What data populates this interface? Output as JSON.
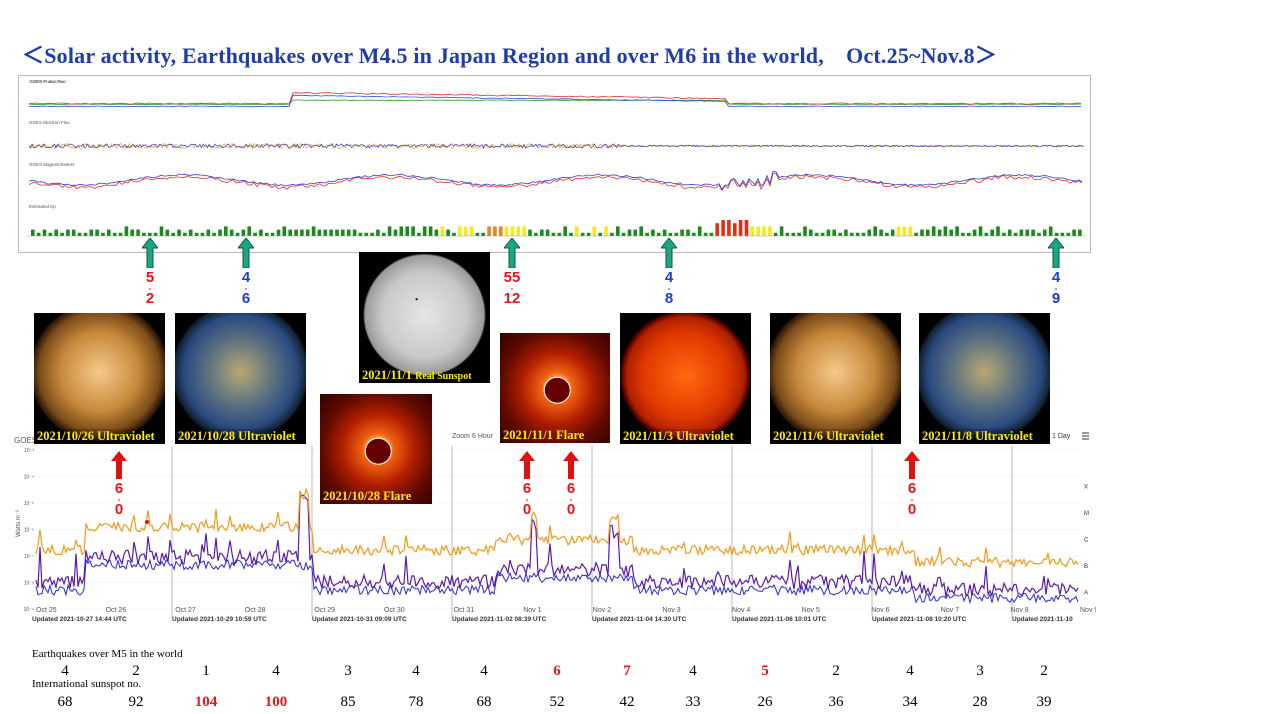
{
  "title": "＜Solar activity, Earthquakes over M4.5 in Japan Region and over M6 in the world,　Oct.25~Nov.8＞",
  "colors": {
    "title": "#1f3caa",
    "red": "#e8161c",
    "blue": "#1a3fd6",
    "arrow_green": "#19a784",
    "arrow_red": "#e01010",
    "caption": "#ffea00"
  },
  "goes_panel": {
    "proton_label": "GOES Proton Flux",
    "electron_label": "GOES Electron Flux",
    "magnetometer_label": "GOES Magnetometers",
    "kp_label": "Estimated Kp"
  },
  "quake_markers_top": [
    {
      "top": "5",
      "bottom": "2",
      "top_color": "red",
      "bottom_color": "red"
    },
    {
      "top": "4",
      "bottom": "6",
      "top_color": "blue",
      "bottom_color": "blue"
    },
    {
      "top": "55",
      "bottom": "12",
      "top_color": "red",
      "bottom_color": "red"
    },
    {
      "top": "4",
      "bottom": "8",
      "top_color": "blue",
      "bottom_color": "blue"
    },
    {
      "top": "4",
      "bottom": "9",
      "top_color": "blue",
      "bottom_color": "blue"
    }
  ],
  "sun_images": [
    {
      "caption": "2021/10/26 Ultraviolet"
    },
    {
      "caption": "2021/10/28 Ultraviolet"
    },
    {
      "caption_date": "2021/11/1",
      "caption_small": "Real Sunspot"
    },
    {
      "caption": "2021/10/28 Flare"
    },
    {
      "caption": "2021/11/1  Flare"
    },
    {
      "caption": "2021/11/3 Ultraviolet"
    },
    {
      "caption": "2021/11/6 Ultraviolet"
    },
    {
      "caption": "2021/11/8 Ultraviolet"
    }
  ],
  "quake_markers_xray": [
    {
      "top": "6",
      "bottom": "0"
    },
    {
      "top": "6",
      "bottom": "0"
    },
    {
      "top": "6",
      "bottom": "0"
    },
    {
      "top": "6",
      "bottom": "0"
    }
  ],
  "xray_panel": {
    "goes_label": "GOES",
    "y_axis_label": "Watts m⁻²",
    "zoom_label": "Zoom",
    "zoom_6h": "6 Hour",
    "zoom_1d": "1 Day",
    "class_labels": [
      "X",
      "M",
      "C",
      "B",
      "A"
    ],
    "y_ticks": [
      "10⁻³",
      "10⁻⁴",
      "10⁻⁵",
      "10⁻⁶",
      "10⁻⁷",
      "10⁻⁸",
      "10⁻⁹"
    ],
    "x_ticks": [
      "Oct 25",
      "Oct 26",
      "Oct 27",
      "Oct 28",
      "Oct 29",
      "Oct 30",
      "Oct 31",
      "Nov 1",
      "Nov 2",
      "Nov 3",
      "Nov 4",
      "Nov 5",
      "Nov 6",
      "Nov 7",
      "Nov 8",
      "Nov 9"
    ],
    "updated": [
      "Updated 2021-10-27 14:44 UTC",
      "Updated 2021-10-29 10:59 UTC",
      "Updated 2021-10-31 09:09 UTC",
      "Updated 2021-11-02 08:39 UTC",
      "Updated 2021-11-04 14:30 UTC",
      "Updated 2021-11-06 10:01 UTC",
      "Updated 2021-11-08 10:20 UTC",
      "Updated 2021-11-10"
    ]
  },
  "earthquakes_label": "Earthquakes over M5 in the world",
  "earthquakes": [
    {
      "v": "4",
      "red": false
    },
    {
      "v": "2",
      "red": false
    },
    {
      "v": "1",
      "red": false
    },
    {
      "v": "4",
      "red": false
    },
    {
      "v": "3",
      "red": false
    },
    {
      "v": "4",
      "red": false
    },
    {
      "v": "4",
      "red": false
    },
    {
      "v": "6",
      "red": true
    },
    {
      "v": "7",
      "red": true
    },
    {
      "v": "4",
      "red": false
    },
    {
      "v": "5",
      "red": true
    },
    {
      "v": "2",
      "red": false
    },
    {
      "v": "4",
      "red": false
    },
    {
      "v": "3",
      "red": false
    },
    {
      "v": "2",
      "red": false
    }
  ],
  "sunspot_label": "International sunspot no.",
  "sunspots": [
    {
      "v": "68",
      "red": false
    },
    {
      "v": "92",
      "red": false
    },
    {
      "v": "104",
      "red": true
    },
    {
      "v": "100",
      "red": true
    },
    {
      "v": "85",
      "red": false
    },
    {
      "v": "78",
      "red": false
    },
    {
      "v": "68",
      "red": false
    },
    {
      "v": "52",
      "red": false
    },
    {
      "v": "42",
      "red": false
    },
    {
      "v": "33",
      "red": false
    },
    {
      "v": "26",
      "red": false
    },
    {
      "v": "36",
      "red": false
    },
    {
      "v": "34",
      "red": false
    },
    {
      "v": "28",
      "red": false
    },
    {
      "v": "39",
      "red": false
    }
  ]
}
